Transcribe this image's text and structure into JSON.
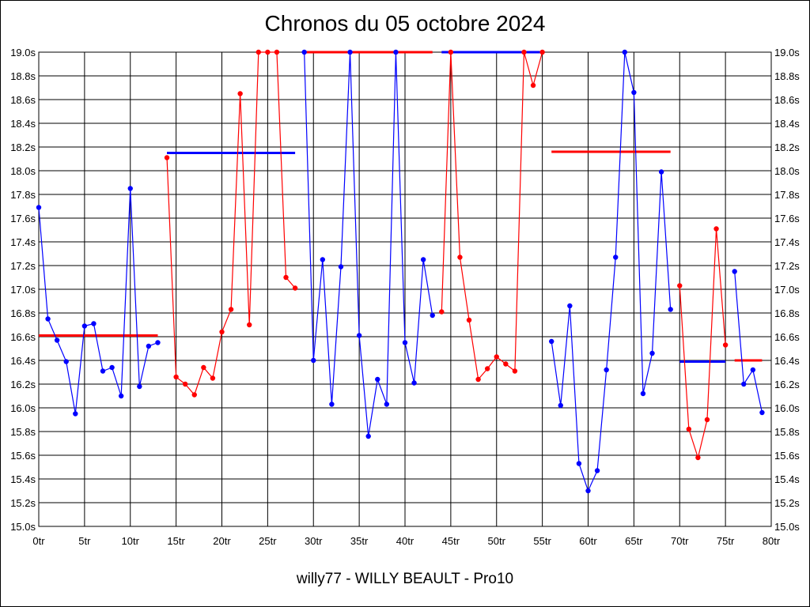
{
  "chart_data": {
    "type": "line",
    "title": "Chronos du 05 octobre 2024",
    "footer": "willy77 - WILLY BEAULT - Pro10",
    "x_ticks": [
      "0tr",
      "5tr",
      "10tr",
      "15tr",
      "20tr",
      "25tr",
      "30tr",
      "35tr",
      "40tr",
      "45tr",
      "50tr",
      "55tr",
      "60tr",
      "65tr",
      "70tr",
      "75tr",
      "80tr"
    ],
    "y_ticks": [
      "15.0s",
      "15.2s",
      "15.4s",
      "15.6s",
      "15.8s",
      "16.0s",
      "16.2s",
      "16.4s",
      "16.6s",
      "16.8s",
      "17.0s",
      "17.2s",
      "17.4s",
      "17.6s",
      "17.8s",
      "18.0s",
      "18.2s",
      "18.4s",
      "18.6s",
      "18.8s",
      "19.0s"
    ],
    "xlim": [
      0,
      80
    ],
    "ylim": [
      15.0,
      19.0
    ],
    "grid": true,
    "colors": {
      "blue": "#0000ff",
      "red": "#ff0000",
      "grid": "#000000"
    },
    "series": [
      {
        "color": "blue",
        "x": [
          0,
          1,
          2,
          3,
          4,
          5,
          6,
          7,
          8,
          9,
          10,
          11,
          12,
          13
        ],
        "y": [
          17.69,
          16.75,
          16.57,
          16.39,
          15.95,
          16.69,
          16.71,
          16.31,
          16.34,
          16.1,
          17.85,
          16.18,
          16.52,
          16.55
        ]
      },
      {
        "color": "red",
        "x": [
          14,
          15,
          16,
          17,
          18,
          19,
          20,
          21,
          22,
          23,
          24,
          25,
          26,
          27,
          28
        ],
        "y": [
          18.11,
          16.26,
          16.2,
          16.11,
          16.34,
          16.25,
          16.64,
          16.83,
          18.65,
          16.7,
          19.0,
          19.0,
          19.0,
          17.1,
          17.01
        ]
      },
      {
        "color": "blue",
        "x": [
          29,
          30,
          31,
          32,
          33,
          34,
          35,
          36,
          37,
          38,
          39,
          40,
          41,
          42,
          43
        ],
        "y": [
          19.0,
          16.4,
          17.25,
          16.03,
          17.19,
          19.0,
          16.61,
          15.76,
          16.24,
          16.03,
          19.0,
          16.55,
          16.21,
          17.25,
          16.78
        ]
      },
      {
        "color": "red",
        "x": [
          44,
          45,
          46,
          47,
          48,
          49,
          50,
          51,
          52,
          53,
          54,
          55
        ],
        "y": [
          16.81,
          19.0,
          17.27,
          16.74,
          16.24,
          16.33,
          16.43,
          16.37,
          16.31,
          19.0,
          18.72,
          19.0
        ]
      },
      {
        "color": "blue",
        "x": [
          56,
          57,
          58,
          59,
          60,
          61,
          62,
          63,
          64,
          65,
          66,
          67,
          68,
          69
        ],
        "y": [
          16.56,
          16.02,
          16.86,
          15.53,
          15.3,
          15.47,
          16.32,
          17.27,
          19.0,
          18.66,
          16.12,
          16.46,
          17.99,
          16.83
        ]
      },
      {
        "color": "red",
        "x": [
          70,
          71,
          72,
          73,
          74,
          75
        ],
        "y": [
          17.03,
          15.82,
          15.58,
          15.9,
          17.51,
          16.53
        ]
      },
      {
        "color": "blue",
        "x": [
          76,
          77,
          78,
          79
        ],
        "y": [
          17.15,
          16.2,
          16.32,
          15.96
        ]
      }
    ],
    "averages": [
      {
        "color": "red",
        "x_start": 0,
        "x_end": 13,
        "y": 16.61
      },
      {
        "color": "blue",
        "x_start": 14,
        "x_end": 28,
        "y": 18.15
      },
      {
        "color": "red",
        "x_start": 29,
        "x_end": 43,
        "y": 19.0
      },
      {
        "color": "blue",
        "x_start": 44,
        "x_end": 55,
        "y": 19.0
      },
      {
        "color": "red",
        "x_start": 56,
        "x_end": 69,
        "y": 18.16
      },
      {
        "color": "blue",
        "x_start": 70,
        "x_end": 75,
        "y": 16.39
      },
      {
        "color": "red",
        "x_start": 76,
        "x_end": 79,
        "y": 16.4
      }
    ]
  }
}
